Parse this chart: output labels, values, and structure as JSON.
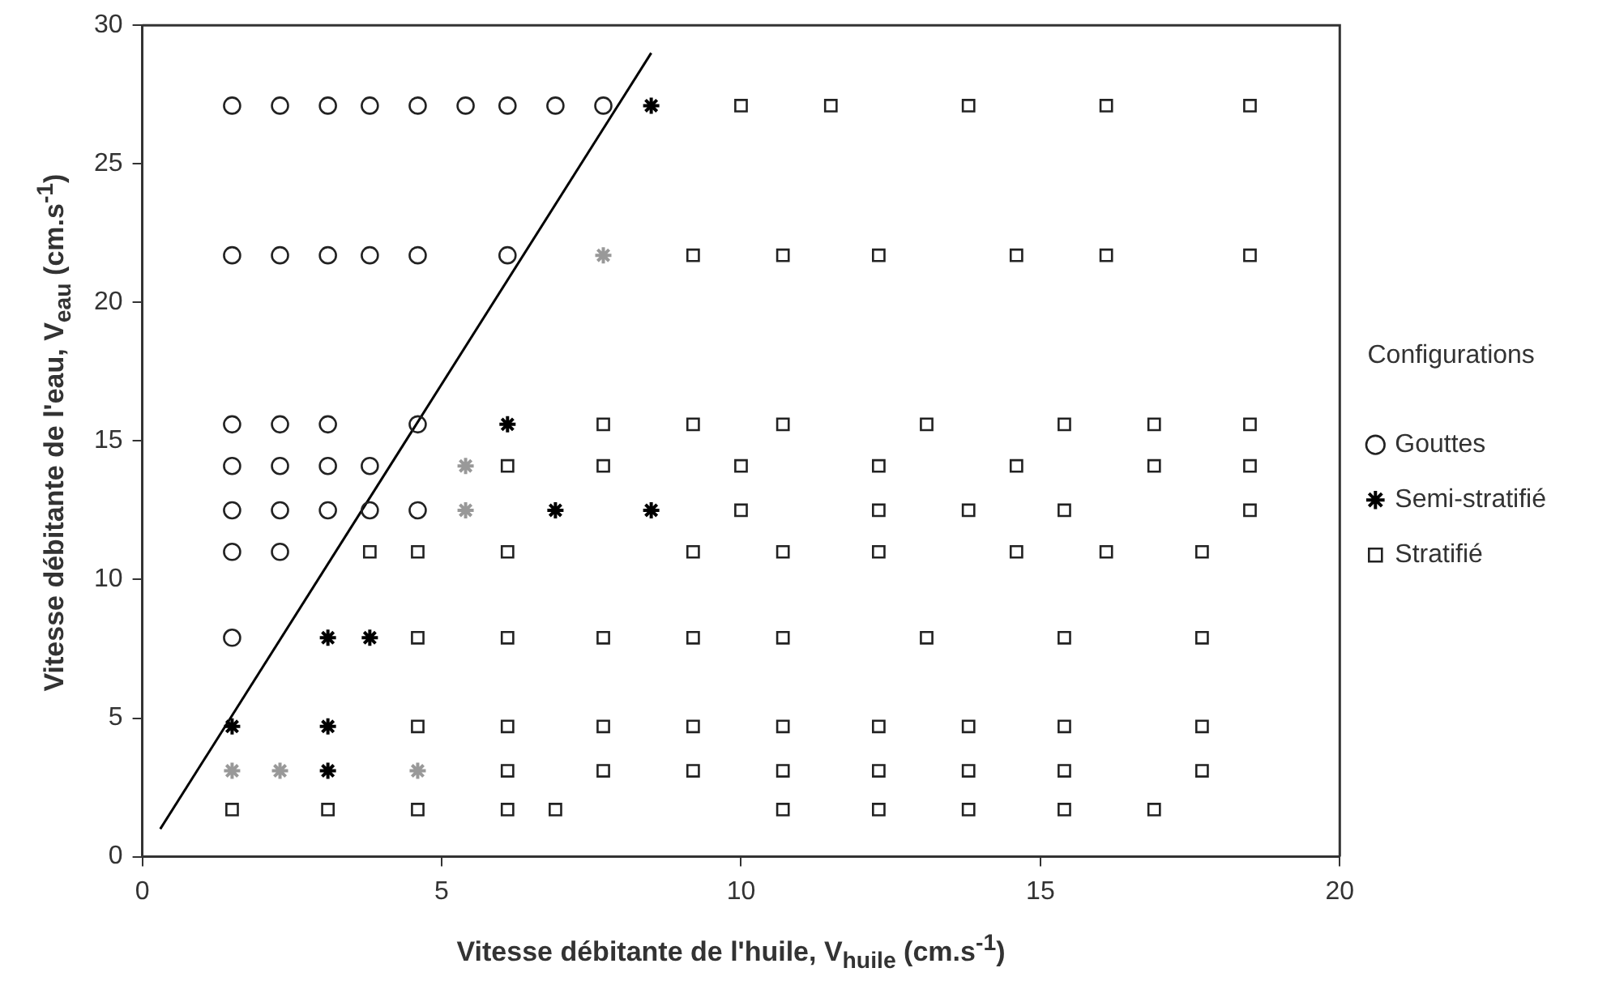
{
  "chart_data": {
    "type": "scatter",
    "xlabel": "Vitesse débitante de l'huile, V$_{huile}$ (cm.s$^{-1}$)",
    "ylabel": "Vitesse débitante de l'eau, V$_{eau}$ (cm.s$^{-1}$)",
    "legend_title": "Configurations",
    "xlim": [
      0,
      20
    ],
    "xticks": [
      0,
      5,
      10,
      15,
      20
    ],
    "ylim": [
      0,
      30
    ],
    "yticks": [
      0,
      5,
      10,
      15,
      20,
      25,
      30
    ],
    "grid": false,
    "legend": "right",
    "series": [
      {
        "name": "Gouttes",
        "color": "#222222",
        "marker": "circle",
        "x": [
          1.5,
          2.3,
          3.1,
          3.8,
          4.6,
          5.4,
          6.1,
          6.9,
          7.7,
          1.5,
          2.3,
          3.1,
          3.8,
          4.6,
          6.1,
          1.5,
          2.3,
          3.1,
          4.6,
          1.5,
          2.3,
          3.1,
          3.8,
          1.5,
          2.3,
          3.1,
          3.8,
          4.6,
          1.5,
          2.3,
          1.5
        ],
        "values": [
          27.1,
          27.1,
          27.1,
          27.1,
          27.1,
          27.1,
          27.1,
          27.1,
          27.1,
          21.7,
          21.7,
          21.7,
          21.7,
          21.7,
          21.7,
          15.6,
          15.6,
          15.6,
          15.6,
          14.1,
          14.1,
          14.1,
          14.1,
          12.5,
          12.5,
          12.5,
          12.5,
          12.5,
          11,
          11,
          7.9
        ]
      },
      {
        "name": "Semi-stratifié",
        "color": "#000000",
        "marker": "cross",
        "x": [
          8.5,
          6.1,
          6.9,
          8.5,
          3.1,
          3.8,
          1.5,
          3.1,
          3.1
        ],
        "values": [
          27.1,
          15.6,
          12.5,
          12.5,
          7.9,
          7.9,
          4.7,
          4.7,
          3.1
        ]
      },
      {
        "name": "Stratifié",
        "color": "#222222",
        "marker": "square",
        "x": [
          10,
          11.5,
          13.8,
          16.1,
          18.5,
          9.2,
          10.7,
          12.3,
          14.6,
          16.1,
          18.5,
          7.7,
          9.2,
          10.7,
          13.1,
          15.4,
          16.9,
          18.5,
          6.1,
          7.7,
          10,
          12.3,
          14.6,
          16.9,
          18.5,
          10,
          12.3,
          13.8,
          15.4,
          18.5,
          3.8,
          4.6,
          6.1,
          9.2,
          10.7,
          12.3,
          14.6,
          16.1,
          17.7,
          4.6,
          6.1,
          7.7,
          9.2,
          10.7,
          13.1,
          15.4,
          17.7,
          4.6,
          6.1,
          7.7,
          9.2,
          10.7,
          12.3,
          13.8,
          15.4,
          17.7,
          6.1,
          7.7,
          9.2,
          10.7,
          12.3,
          13.8,
          15.4,
          17.7,
          1.5,
          3.1,
          4.6,
          6.1,
          6.9,
          10.7,
          12.3,
          13.8,
          15.4,
          16.9
        ],
        "values": [
          27.1,
          27.1,
          27.1,
          27.1,
          27.1,
          21.7,
          21.7,
          21.7,
          21.7,
          21.7,
          21.7,
          15.6,
          15.6,
          15.6,
          15.6,
          15.6,
          15.6,
          15.6,
          14.1,
          14.1,
          14.1,
          14.1,
          14.1,
          14.1,
          14.1,
          12.5,
          12.5,
          12.5,
          12.5,
          12.5,
          11,
          11,
          11,
          11,
          11,
          11,
          11,
          11,
          11,
          7.9,
          7.9,
          7.9,
          7.9,
          7.9,
          7.9,
          7.9,
          7.9,
          4.7,
          4.7,
          4.7,
          4.7,
          4.7,
          4.7,
          4.7,
          4.7,
          4.7,
          3.1,
          3.1,
          3.1,
          3.1,
          3.1,
          3.1,
          3.1,
          3.1,
          1.7,
          1.7,
          1.7,
          1.7,
          1.7,
          1.7,
          1.7,
          1.7,
          1.7,
          1.7
        ]
      },
      {
        "color": "#999999",
        "marker": "cross",
        "x": [
          7.7,
          5.4,
          5.4,
          1.5,
          2.3,
          4.6
        ],
        "values": [
          21.7,
          14.1,
          12.5,
          3.1,
          3.1,
          3.1
        ]
      },
      {
        "type": "line",
        "color": "#000000",
        "marker": "none",
        "line_style": "solid",
        "x": [
          0.3,
          8.5
        ],
        "values": [
          1,
          29
        ]
      }
    ]
  }
}
